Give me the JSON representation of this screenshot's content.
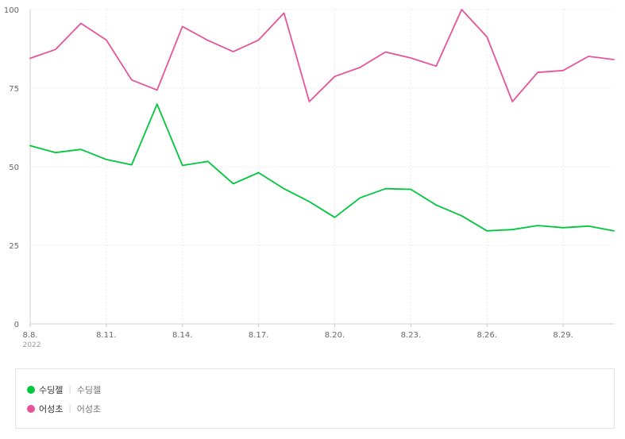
{
  "chart_data": {
    "type": "line",
    "title": "",
    "xlabel": "",
    "ylabel": "",
    "ylim": [
      0,
      100
    ],
    "yticks": [
      "0",
      "25",
      "50",
      "75",
      "100"
    ],
    "x": [
      "8.8.",
      "8.9.",
      "8.10.",
      "8.11.",
      "8.12.",
      "8.13.",
      "8.14.",
      "8.15.",
      "8.16.",
      "8.17.",
      "8.18.",
      "8.19.",
      "8.20.",
      "8.21.",
      "8.22.",
      "8.23.",
      "8.24.",
      "8.25.",
      "8.26.",
      "8.27.",
      "8.28.",
      "8.29.",
      "8.30.",
      "8.31."
    ],
    "xtick_labels": [
      "8.8.",
      "8.11.",
      "8.14.",
      "8.17.",
      "8.20.",
      "8.23.",
      "8.26.",
      "8.29."
    ],
    "xtick_sub": "2022",
    "grid": true,
    "legend_position": "bottom",
    "series": [
      {
        "name": "수딩젤",
        "color": "#00c73c",
        "values": [
          56.7,
          54.5,
          55.5,
          52.3,
          50.6,
          69.9,
          50.4,
          51.7,
          44.6,
          48.1,
          43,
          38.9,
          33.9,
          40.1,
          43,
          42.8,
          37.8,
          34.4,
          29.6,
          30,
          31.3,
          30.6,
          31.1,
          29.6
        ]
      },
      {
        "name": "어성초",
        "color": "#e6549b",
        "values": [
          84.5,
          87.3,
          95.6,
          90.3,
          77.6,
          74.4,
          94.6,
          90.2,
          86.6,
          90.3,
          98.9,
          70.7,
          78.7,
          81.6,
          86.5,
          84.6,
          82,
          100,
          91.3,
          70.7,
          80,
          80.6,
          85.1,
          84.1
        ]
      }
    ]
  },
  "legend": {
    "items": [
      {
        "label": "수딩젤",
        "sub": "수딩젤",
        "color": "#00c73c"
      },
      {
        "label": "어성초",
        "sub": "어성초",
        "color": "#e6549b"
      }
    ]
  }
}
